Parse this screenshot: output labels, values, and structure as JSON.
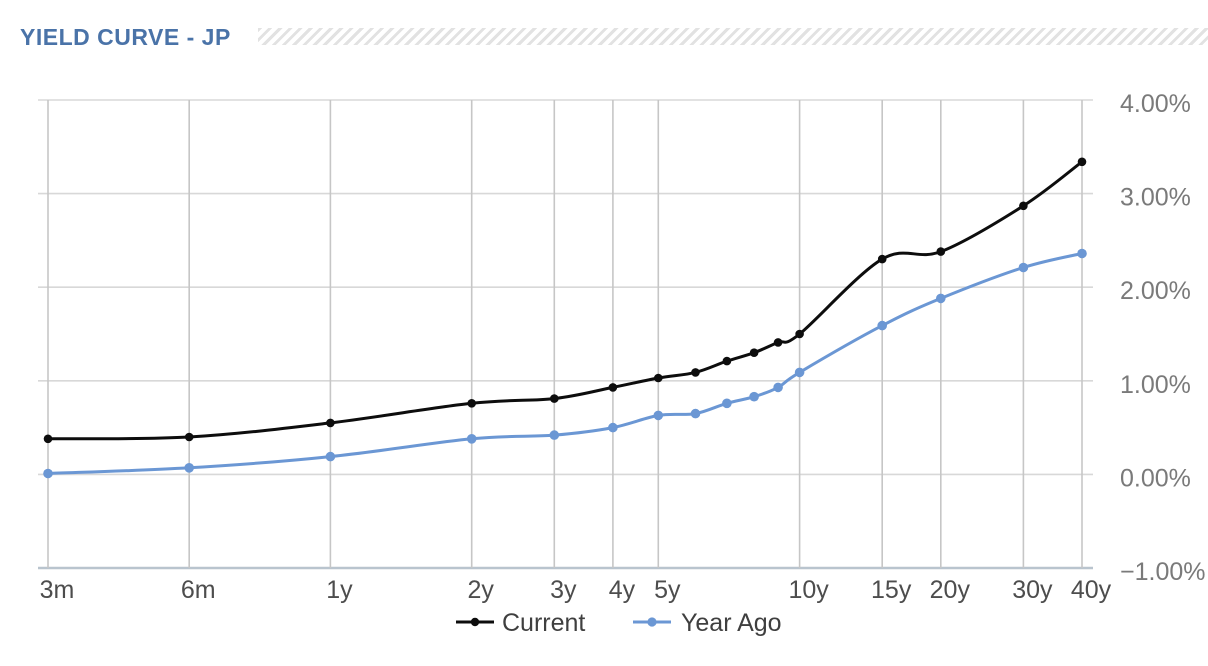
{
  "header": {
    "title": "YIELD CURVE - JP"
  },
  "chart_data": {
    "type": "line",
    "title": "YIELD CURVE - JP",
    "line_style": "smooth",
    "grid": true,
    "legend_position": "bottom",
    "x_axis": {
      "scale": "log",
      "unit": "maturity",
      "tick_labels": [
        "3m",
        "6m",
        "1y",
        "2y",
        "3y",
        "4y",
        "5y",
        "10y",
        "15y",
        "20y",
        "30y",
        "40y"
      ],
      "tick_years": [
        0.25,
        0.5,
        1,
        2,
        3,
        4,
        5,
        10,
        15,
        20,
        30,
        40
      ]
    },
    "y_axis": {
      "side": "right",
      "tick_labels": [
        "4.00%",
        "3.00%",
        "2.00%",
        "1.00%",
        "0.00%",
        "−1.00%"
      ],
      "tick_values": [
        4,
        3,
        2,
        1,
        0,
        -1
      ],
      "ylim": [
        -1,
        4
      ]
    },
    "maturities_years": [
      0.25,
      0.5,
      1,
      2,
      3,
      4,
      5,
      6,
      7,
      8,
      9,
      10,
      15,
      20,
      30,
      40
    ],
    "series": [
      {
        "name": "Current",
        "color": "#0d0d0d",
        "values": [
          0.38,
          0.4,
          0.55,
          0.76,
          0.81,
          0.93,
          1.03,
          1.09,
          1.21,
          1.3,
          1.41,
          1.5,
          2.3,
          2.38,
          2.87,
          3.34
        ]
      },
      {
        "name": "Year Ago",
        "color": "#6b97d4",
        "values": [
          0.01,
          0.07,
          0.19,
          0.38,
          0.42,
          0.5,
          0.63,
          0.65,
          0.76,
          0.83,
          0.93,
          1.09,
          1.59,
          1.88,
          2.21,
          2.36
        ]
      }
    ]
  },
  "legend": {
    "items": [
      {
        "label": "Current"
      },
      {
        "label": "Year Ago"
      }
    ]
  },
  "colors": {
    "title": "#4a73a8",
    "hatch": "#e2e2e2",
    "grid_horizontal": "#d8d8d8",
    "grid_vertical": "#c6c6c6",
    "axis_line": "#b9c4ce",
    "xtick_text": "#4d4d4d",
    "ytick_text": "#7a7a7a",
    "legend_text": "#3f3f3f"
  }
}
